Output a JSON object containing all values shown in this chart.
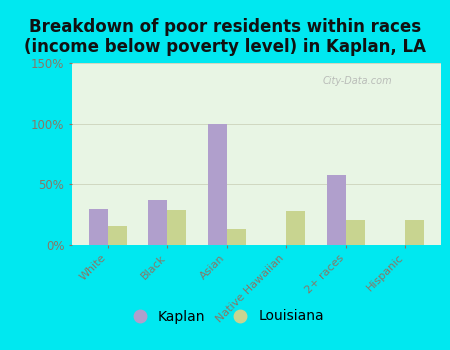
{
  "title": "Breakdown of poor residents within races\n(income below poverty level) in Kaplan, LA",
  "categories": [
    "White",
    "Black",
    "Asian",
    "Native Hawaiian",
    "2+ races",
    "Hispanic"
  ],
  "kaplan_values": [
    30,
    37,
    100,
    0,
    58,
    0
  ],
  "louisiana_values": [
    16,
    29,
    13,
    28,
    21,
    21
  ],
  "kaplan_color": "#b09fcc",
  "louisiana_color": "#c8d490",
  "bg_color_outer": "#00e8f0",
  "bg_color_plot": "#e8f5e4",
  "ylim": [
    0,
    150
  ],
  "yticks": [
    0,
    50,
    100,
    150
  ],
  "ytick_labels": [
    "0%",
    "50%",
    "100%",
    "150%"
  ],
  "grid_color": "#d0d8c0",
  "watermark": "City-Data.com",
  "legend_kaplan": "Kaplan",
  "legend_louisiana": "Louisiana",
  "title_fontsize": 12,
  "bar_width": 0.32,
  "xtick_color": "#887766",
  "ytick_color": "#887766"
}
